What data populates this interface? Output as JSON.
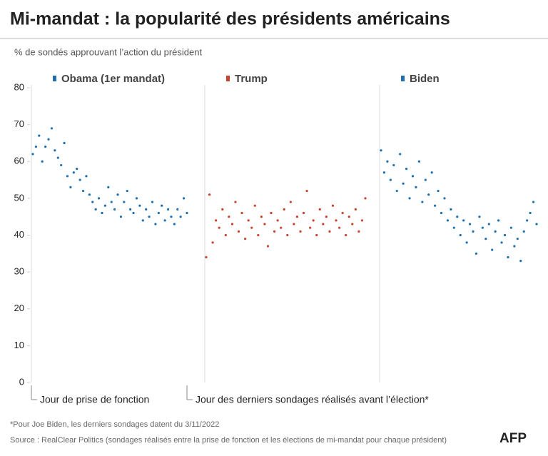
{
  "chart_data": {
    "type": "scatter",
    "title": "Mi-mandat : la popularité des présidents américains",
    "subtitle": "% de sondés approuvant l’action du président",
    "start_label": "Jour de prise de fonction",
    "end_label": "Jour des derniers sondages réalisés avant l’élection*",
    "footnote": "*Pour Joe Biden, les derniers sondages datent du 3/11/2022",
    "source": "Source : RealClear Politics (sondages réalisés entre la prise de fonction et les élections de mi-mandat pour chaque président)",
    "logo": "AFP",
    "ylim": [
      0,
      80
    ],
    "yticks": [
      0,
      10,
      20,
      30,
      40,
      50,
      60,
      70,
      80
    ],
    "xlim": [
      0,
      637
    ],
    "x": [
      0,
      13,
      26,
      39,
      52,
      65,
      78,
      91,
      104,
      117,
      130,
      143,
      156,
      169,
      182,
      195,
      208,
      221,
      234,
      247,
      260,
      273,
      286,
      299,
      312,
      325,
      338,
      351,
      364,
      377,
      390,
      403,
      416,
      429,
      442,
      455,
      468,
      481,
      494,
      507,
      520,
      533,
      546,
      559,
      572,
      585,
      598,
      611,
      624,
      637
    ],
    "series": [
      {
        "name": "Obama (1er mandat)",
        "color": "#1f6fad",
        "values": [
          62,
          64,
          67,
          60,
          64,
          66,
          69,
          63,
          61,
          59,
          65,
          56,
          53,
          57,
          58,
          55,
          52,
          56,
          51,
          49,
          47,
          50,
          46,
          48,
          53,
          49,
          47,
          51,
          45,
          49,
          52,
          47,
          46,
          50,
          48,
          44,
          47,
          45,
          49,
          43,
          46,
          48,
          44,
          47,
          45,
          43,
          47,
          45,
          50,
          46
        ]
      },
      {
        "name": "Trump",
        "color": "#c8432f",
        "values": [
          34,
          51,
          38,
          44,
          42,
          47,
          40,
          45,
          43,
          49,
          41,
          46,
          39,
          44,
          42,
          48,
          40,
          45,
          43,
          37,
          46,
          41,
          44,
          42,
          47,
          40,
          49,
          43,
          45,
          41,
          46,
          52,
          42,
          44,
          40,
          47,
          43,
          45,
          41,
          48,
          44,
          42,
          46,
          40,
          45,
          43,
          47,
          41,
          44,
          50
        ]
      },
      {
        "name": "Biden",
        "color": "#1f6fad",
        "values": [
          63,
          57,
          60,
          55,
          59,
          52,
          62,
          54,
          58,
          50,
          56,
          53,
          60,
          49,
          55,
          51,
          57,
          48,
          52,
          46,
          50,
          44,
          47,
          42,
          45,
          40,
          44,
          38,
          43,
          41,
          35,
          45,
          42,
          39,
          43,
          36,
          41,
          44,
          38,
          40,
          34,
          42,
          37,
          39,
          33,
          41,
          44,
          46,
          49,
          43
        ]
      }
    ]
  }
}
